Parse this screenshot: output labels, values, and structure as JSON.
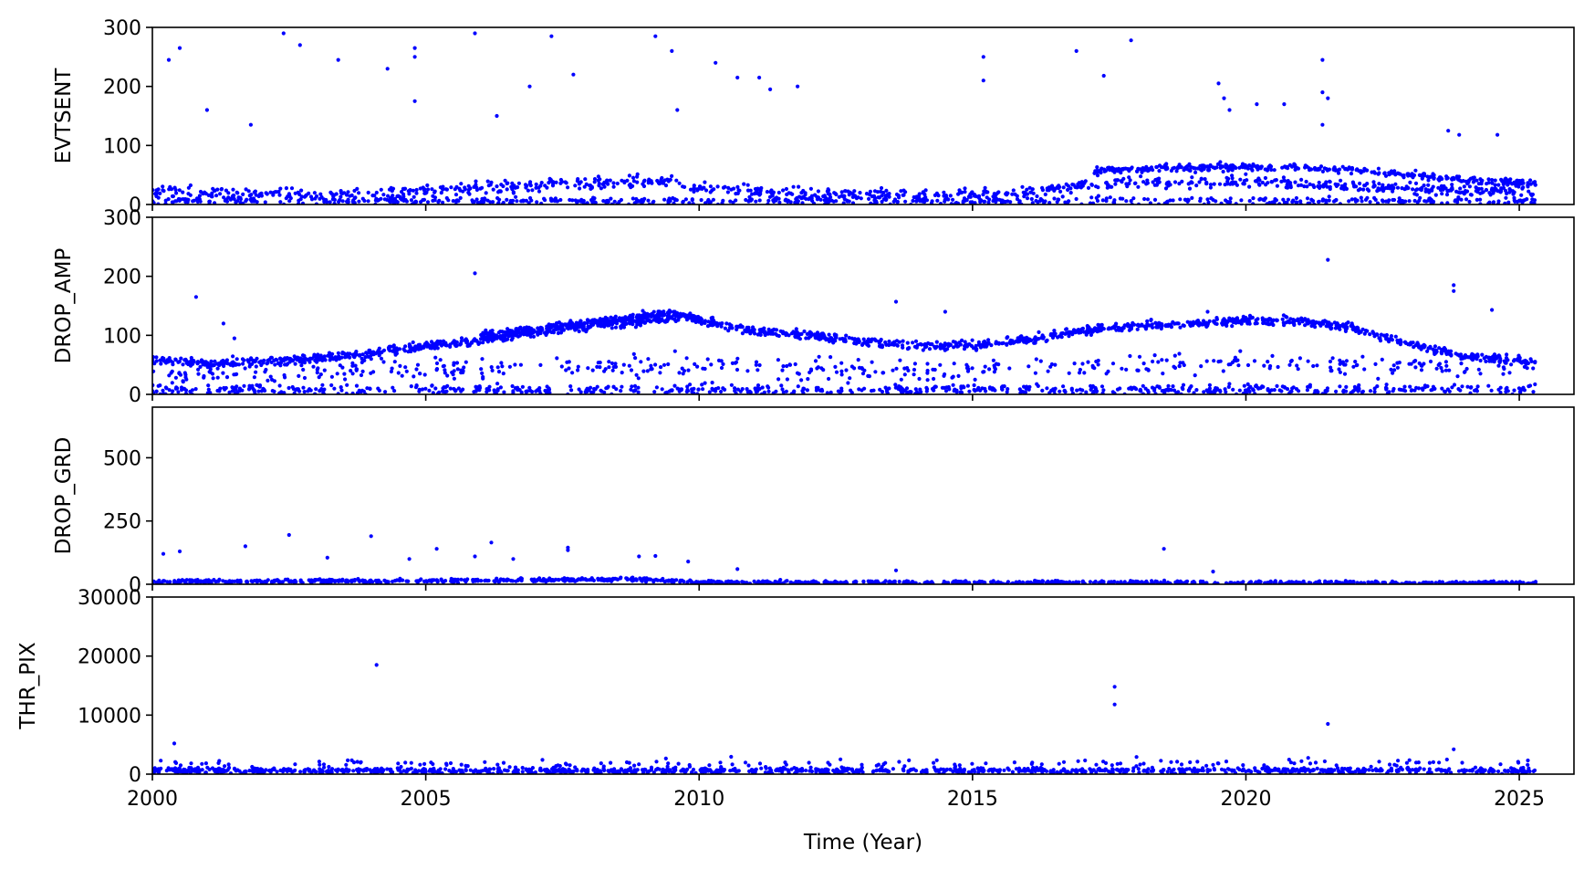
{
  "colors": {
    "marker": "#0000ff",
    "axes": "#000000",
    "background": "#ffffff"
  },
  "chart_data": {
    "type": "scatter",
    "xlabel": "Time (Year)",
    "xlim": [
      2000,
      2026
    ],
    "xticks": [
      2000,
      2005,
      2010,
      2015,
      2020,
      2025
    ],
    "grid": false,
    "marker_color": "#0000ff",
    "panels": [
      {
        "ylabel": "EVTSENT",
        "ylim": [
          0,
          300
        ],
        "yticks": [
          0,
          100,
          200,
          300
        ],
        "bands": [
          {
            "name": "main",
            "points": [
              [
                2000,
                22
              ],
              [
                2002,
                18
              ],
              [
                2004,
                16
              ],
              [
                2006,
                28
              ],
              [
                2008,
                36
              ],
              [
                2009.5,
                40
              ],
              [
                2010,
                26
              ],
              [
                2012,
                18
              ],
              [
                2014,
                15
              ],
              [
                2016,
                20
              ],
              [
                2017.2,
                34
              ],
              [
                2018,
                38
              ],
              [
                2020,
                40
              ],
              [
                2022,
                32
              ],
              [
                2024,
                24
              ],
              [
                2025.3,
                22
              ]
            ],
            "spread": 8,
            "count": 900
          },
          {
            "name": "upper",
            "points": [
              [
                2017.2,
                56
              ],
              [
                2018,
                60
              ],
              [
                2019,
                62
              ],
              [
                2020,
                64
              ],
              [
                2021,
                62
              ],
              [
                2022,
                58
              ],
              [
                2023,
                50
              ],
              [
                2024,
                42
              ],
              [
                2025.3,
                36
              ]
            ],
            "spread": 5,
            "count": 380
          },
          {
            "name": "low",
            "points": [
              [
                2000,
                6
              ],
              [
                2025.3,
                6
              ]
            ],
            "spread": 5,
            "count": 600
          }
        ],
        "outliers": [
          [
            2000.3,
            245
          ],
          [
            2000.5,
            265
          ],
          [
            2001,
            160
          ],
          [
            2001.8,
            135
          ],
          [
            2002.4,
            290
          ],
          [
            2002.7,
            270
          ],
          [
            2003.4,
            245
          ],
          [
            2004.3,
            230
          ],
          [
            2004.8,
            265
          ],
          [
            2004.8,
            250
          ],
          [
            2004.8,
            175
          ],
          [
            2005.9,
            290
          ],
          [
            2006.3,
            150
          ],
          [
            2006.9,
            200
          ],
          [
            2007.3,
            285
          ],
          [
            2007.7,
            220
          ],
          [
            2009.2,
            285
          ],
          [
            2009.5,
            260
          ],
          [
            2009.6,
            160
          ],
          [
            2010.3,
            240
          ],
          [
            2010.7,
            215
          ],
          [
            2011.1,
            215
          ],
          [
            2011.3,
            195
          ],
          [
            2011.8,
            200
          ],
          [
            2015.2,
            250
          ],
          [
            2015.2,
            210
          ],
          [
            2016.9,
            260
          ],
          [
            2017.4,
            218
          ],
          [
            2017.9,
            278
          ],
          [
            2019.5,
            205
          ],
          [
            2019.6,
            180
          ],
          [
            2019.7,
            160
          ],
          [
            2020.2,
            170
          ],
          [
            2020.7,
            170
          ],
          [
            2021.4,
            245
          ],
          [
            2021.4,
            190
          ],
          [
            2021.5,
            180
          ],
          [
            2021.4,
            135
          ],
          [
            2023.7,
            125
          ],
          [
            2023.9,
            118
          ],
          [
            2024.6,
            118
          ]
        ]
      },
      {
        "ylabel": "DROP_AMP",
        "ylim": [
          0,
          300
        ],
        "yticks": [
          0,
          100,
          200,
          300
        ],
        "bands": [
          {
            "name": "main",
            "points": [
              [
                2000,
                60
              ],
              [
                2001,
                52
              ],
              [
                2002,
                56
              ],
              [
                2003,
                60
              ],
              [
                2004,
                70
              ],
              [
                2005,
                82
              ],
              [
                2006,
                92
              ],
              [
                2007,
                105
              ],
              [
                2008,
                115
              ],
              [
                2009,
                125
              ],
              [
                2009.8,
                132
              ],
              [
                2010.4,
                118
              ],
              [
                2011,
                108
              ],
              [
                2012,
                100
              ],
              [
                2013,
                90
              ],
              [
                2014,
                82
              ],
              [
                2015,
                84
              ],
              [
                2016,
                92
              ],
              [
                2017,
                108
              ],
              [
                2018,
                115
              ],
              [
                2019,
                120
              ],
              [
                2020,
                125
              ],
              [
                2021,
                124
              ],
              [
                2022,
                112
              ],
              [
                2023,
                85
              ],
              [
                2024,
                65
              ],
              [
                2025.3,
                55
              ]
            ],
            "spread": 6,
            "count": 1600
          },
          {
            "name": "upper",
            "points": [
              [
                2006,
                100
              ],
              [
                2008,
                122
              ],
              [
                2009.5,
                138
              ],
              [
                2010,
                128
              ]
            ],
            "spread": 5,
            "count": 260
          },
          {
            "name": "mid",
            "points": [
              [
                2000,
                30
              ],
              [
                2006,
                45
              ],
              [
                2010,
                52
              ],
              [
                2013,
                40
              ],
              [
                2016,
                45
              ],
              [
                2020,
                55
              ],
              [
                2025.3,
                40
              ]
            ],
            "spread": 15,
            "count": 450
          },
          {
            "name": "low",
            "points": [
              [
                2000,
                8
              ],
              [
                2025.3,
                8
              ]
            ],
            "spread": 7,
            "count": 700
          }
        ],
        "outliers": [
          [
            2000.8,
            165
          ],
          [
            2001.3,
            120
          ],
          [
            2001.5,
            95
          ],
          [
            2005.9,
            205
          ],
          [
            2013.6,
            157
          ],
          [
            2014.5,
            140
          ],
          [
            2019.3,
            140
          ],
          [
            2021.5,
            228
          ],
          [
            2023.8,
            185
          ],
          [
            2023.8,
            175
          ],
          [
            2024.5,
            143
          ]
        ]
      },
      {
        "ylabel": "DROP_GRD",
        "ylim": [
          0,
          700
        ],
        "yticks": [
          0,
          250,
          500
        ],
        "bands": [
          {
            "name": "main",
            "points": [
              [
                2000,
                10
              ],
              [
                2006,
                15
              ],
              [
                2009,
                20
              ],
              [
                2010,
                8
              ],
              [
                2025.3,
                5
              ]
            ],
            "spread": 6,
            "count": 1100
          }
        ],
        "outliers": [
          [
            2000.2,
            120
          ],
          [
            2000.5,
            130
          ],
          [
            2001.7,
            150
          ],
          [
            2002.5,
            195
          ],
          [
            2003.2,
            105
          ],
          [
            2004,
            190
          ],
          [
            2004.7,
            100
          ],
          [
            2005.2,
            140
          ],
          [
            2005.9,
            110
          ],
          [
            2006.2,
            165
          ],
          [
            2006.6,
            100
          ],
          [
            2007.6,
            145
          ],
          [
            2007.6,
            135
          ],
          [
            2008.9,
            110
          ],
          [
            2009.2,
            112
          ],
          [
            2009.8,
            90
          ],
          [
            2010.7,
            60
          ],
          [
            2013.6,
            55
          ],
          [
            2018.5,
            140
          ],
          [
            2019.4,
            50
          ]
        ]
      },
      {
        "ylabel": "THR_PIX",
        "ylim": [
          0,
          30000
        ],
        "yticks": [
          0,
          10000,
          20000,
          30000
        ],
        "bands": [
          {
            "name": "main",
            "points": [
              [
                2000,
                600
              ],
              [
                2025.3,
                600
              ]
            ],
            "spread": 400,
            "count": 1100
          },
          {
            "name": "scatter",
            "points": [
              [
                2000,
                1800
              ],
              [
                2025.3,
                1800
              ]
            ],
            "spread": 700,
            "count": 160
          }
        ],
        "outliers": [
          [
            2000.4,
            5200
          ],
          [
            2004.1,
            18500
          ],
          [
            2017.6,
            14800
          ],
          [
            2017.6,
            11800
          ],
          [
            2018,
            2900
          ],
          [
            2021.5,
            8500
          ],
          [
            2023.8,
            4200
          ]
        ]
      }
    ]
  }
}
